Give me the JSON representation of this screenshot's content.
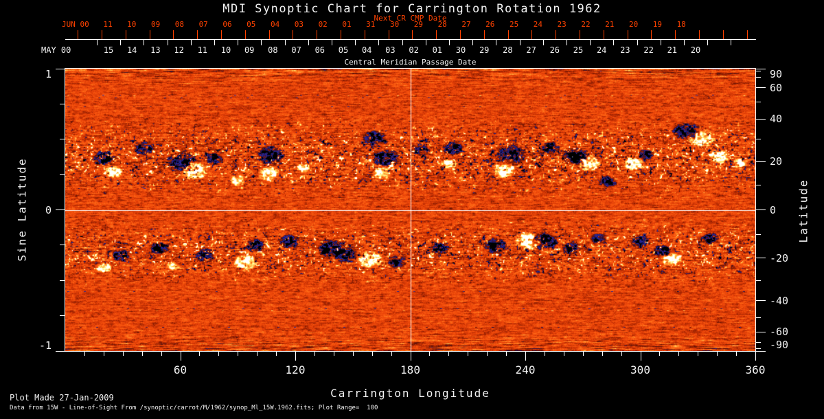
{
  "title": "MDI Synoptic Chart for Carrington Rotation 1962",
  "top_axis": {
    "next_cr_label": "Next CR CMP Date",
    "red_axis_name": "JUN 00",
    "red_day_labels": [
      "11",
      "10",
      "09",
      "08",
      "07",
      "06",
      "05",
      "04",
      "03",
      "02",
      "01",
      "31",
      "30",
      "29",
      "28",
      "27",
      "26",
      "25",
      "24",
      "23",
      "22",
      "21",
      "20",
      "19",
      "18"
    ],
    "white_axis_name": "MAY 00",
    "white_day_labels": [
      "15",
      "14",
      "13",
      "12",
      "11",
      "10",
      "09",
      "08",
      "07",
      "06",
      "05",
      "04",
      "03",
      "02",
      "01",
      "30",
      "29",
      "28",
      "27",
      "26",
      "25",
      "24",
      "23",
      "22",
      "21",
      "20"
    ],
    "center_label": "Central Meridian Passage Date"
  },
  "left_axis": {
    "title": "Sine Latitude",
    "major_ticks": [
      1,
      0,
      -1
    ],
    "minor_step": 0.25
  },
  "right_axis": {
    "title": "Latitude",
    "labeled_ticks": [
      90,
      60,
      40,
      20,
      0,
      -20,
      -40,
      -60,
      -90
    ],
    "minor_step_deg": 10
  },
  "bottom_axis": {
    "title": "Carrington Longitude",
    "major_ticks": [
      60,
      120,
      180,
      240,
      300,
      360
    ],
    "minor_step_deg": 10
  },
  "footer": {
    "line1": "Plot Made 27-Jan-2009",
    "line2": "Data from 15W - Line-of-Sight From /synoptic/carrot/M/1962/synop_Ml_15W.1962.fits; Plot Range=  100"
  },
  "colors": {
    "background": "#000000",
    "text": "#f2f2f2",
    "red_axis": "#ff4200",
    "frame": "#ffffff",
    "reference_line": "#ffffff"
  },
  "chart_data": {
    "type": "heatmap",
    "title": "MDI Synoptic Chart for Carrington Rotation 1962",
    "xlabel": "Carrington Longitude",
    "ylabel": "Sine Latitude",
    "ylabel_right": "Latitude",
    "x_range": [
      0,
      360
    ],
    "y_range_sine": [
      -1,
      1
    ],
    "grid": false,
    "legend": "none",
    "plot_range_gauss": 100,
    "reference_lines": {
      "carrington_longitude": 180,
      "sine_latitude": 0
    },
    "palette_stops": [
      [
        -1.0,
        "#000000"
      ],
      [
        -0.86,
        "#08082c"
      ],
      [
        -0.72,
        "#20208c"
      ],
      [
        -0.6,
        "#2d2da0"
      ],
      [
        -0.5,
        "#2a1250"
      ],
      [
        -0.4,
        "#5c1208"
      ],
      [
        -0.28,
        "#8c1e02"
      ],
      [
        -0.14,
        "#c23004"
      ],
      [
        0.0,
        "#e84309"
      ],
      [
        0.16,
        "#fa5810"
      ],
      [
        0.32,
        "#ff7e20"
      ],
      [
        0.48,
        "#ffb94c"
      ],
      [
        0.62,
        "#ffe66c"
      ],
      [
        0.76,
        "#ffffa0"
      ],
      [
        0.9,
        "#ffffff"
      ],
      [
        1.0,
        "#ffffff"
      ]
    ],
    "activity_bands": [
      {
        "center_sine": 0.37,
        "sigma": 0.2,
        "amplitude": 1.0
      },
      {
        "center_sine": -0.3,
        "sigma": 0.17,
        "amplitude": 0.9
      }
    ],
    "active_regions": [
      [
        20,
        0.37,
        -1,
        10
      ],
      [
        25,
        0.27,
        1,
        8
      ],
      [
        41,
        0.44,
        -1,
        9
      ],
      [
        61,
        0.34,
        -1,
        14
      ],
      [
        67,
        0.28,
        1,
        12
      ],
      [
        77,
        0.37,
        -1,
        8
      ],
      [
        90,
        0.21,
        1,
        7
      ],
      [
        107,
        0.39,
        -1,
        12
      ],
      [
        106,
        0.26,
        1,
        9
      ],
      [
        124,
        0.3,
        1,
        6
      ],
      [
        161,
        0.51,
        -1,
        10
      ],
      [
        167,
        0.37,
        -1,
        12
      ],
      [
        165,
        0.26,
        1,
        8
      ],
      [
        185,
        0.43,
        -1,
        8
      ],
      [
        202,
        0.44,
        -1,
        9
      ],
      [
        200,
        0.33,
        1,
        7
      ],
      [
        233,
        0.39,
        -1,
        13
      ],
      [
        229,
        0.28,
        1,
        10
      ],
      [
        253,
        0.44,
        -1,
        8
      ],
      [
        266,
        0.38,
        -1,
        12
      ],
      [
        273,
        0.33,
        1,
        10
      ],
      [
        283,
        0.2,
        -1,
        8
      ],
      [
        296,
        0.33,
        1,
        10
      ],
      [
        303,
        0.39,
        -1,
        7
      ],
      [
        324,
        0.56,
        -1,
        12
      ],
      [
        332,
        0.51,
        1,
        12
      ],
      [
        341,
        0.38,
        1,
        9
      ],
      [
        352,
        0.33,
        1,
        7
      ],
      [
        20,
        -0.41,
        1,
        7
      ],
      [
        29,
        -0.32,
        -1,
        8
      ],
      [
        49,
        -0.27,
        -1,
        8
      ],
      [
        56,
        -0.4,
        1,
        6
      ],
      [
        73,
        -0.32,
        -1,
        9
      ],
      [
        94,
        -0.37,
        1,
        10
      ],
      [
        99,
        -0.25,
        -1,
        9
      ],
      [
        117,
        -0.22,
        -1,
        9
      ],
      [
        139,
        -0.27,
        -1,
        12
      ],
      [
        146,
        -0.32,
        -1,
        10
      ],
      [
        159,
        -0.35,
        1,
        11
      ],
      [
        173,
        -0.37,
        -1,
        8
      ],
      [
        195,
        -0.27,
        -1,
        8
      ],
      [
        224,
        -0.25,
        -1,
        10
      ],
      [
        241,
        -0.22,
        1,
        12
      ],
      [
        250,
        -0.22,
        -1,
        12
      ],
      [
        264,
        -0.27,
        -1,
        8
      ],
      [
        278,
        -0.2,
        -1,
        7
      ],
      [
        300,
        -0.22,
        -1,
        9
      ],
      [
        311,
        -0.29,
        -1,
        8
      ],
      [
        316,
        -0.35,
        1,
        9
      ],
      [
        336,
        -0.2,
        -1,
        8
      ]
    ]
  }
}
